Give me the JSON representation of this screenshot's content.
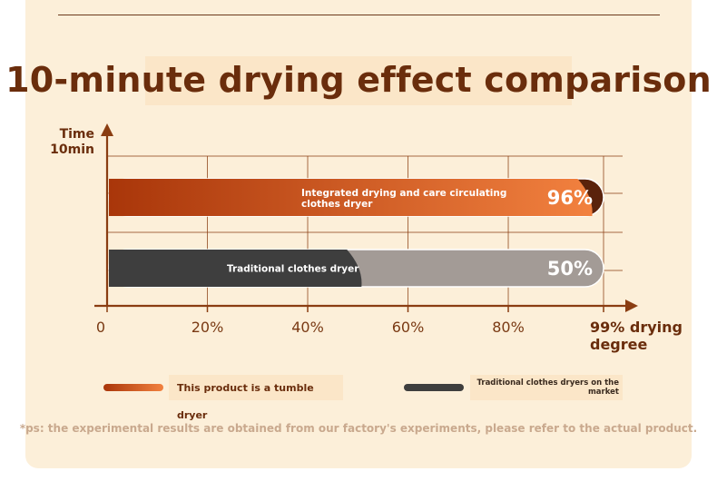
{
  "header": {
    "title": "10-minute drying effect comparison"
  },
  "chart_data": {
    "type": "bar",
    "orientation": "horizontal",
    "ylabel": [
      "Time",
      "10min"
    ],
    "xlabel": [
      "99% drying",
      "degree"
    ],
    "xlim": [
      0,
      99
    ],
    "x_ticks": [
      {
        "value": 0,
        "label": "0"
      },
      {
        "value": 20,
        "label": "20%"
      },
      {
        "value": 40,
        "label": "40%"
      },
      {
        "value": 60,
        "label": "60%"
      },
      {
        "value": 80,
        "label": "80%"
      }
    ],
    "grid": true,
    "bars": [
      {
        "name": "Integrated drying and care circulating clothes dryer",
        "value": 96,
        "value_label": "96%",
        "color_start": "#a9360a",
        "color_end": "#f2813f",
        "badge_color": "#5a220b",
        "style": "orange"
      },
      {
        "name": "Traditional clothes dryer",
        "value": 50,
        "value_label": "50%",
        "color_start": "#3e3e3e",
        "color_end": "#3e3e3e",
        "badge_color": "#a39b96",
        "style": "gray"
      }
    ],
    "colors": {
      "axis": "#8a3d12",
      "grid": "#8a3d12"
    }
  },
  "legend": {
    "items": [
      {
        "label": "This product is a tumble dryer"
      },
      {
        "label": "Traditional clothes dryers on the market"
      }
    ]
  },
  "footnote": "*ps: the experimental results are obtained from our factory's experiments, please refer to the actual product."
}
